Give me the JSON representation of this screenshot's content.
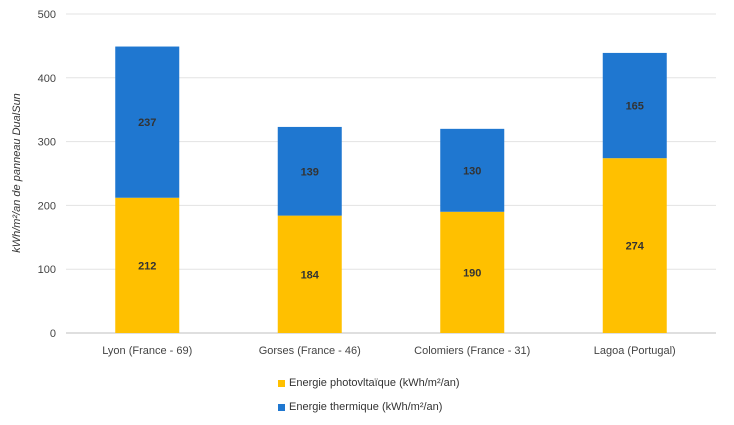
{
  "chart_data": {
    "type": "bar",
    "stacked": true,
    "ylabel": "kWh/m²/an de panneau DualSun",
    "ylim": [
      0,
      500
    ],
    "yticks": [
      0,
      100,
      200,
      300,
      400,
      500
    ],
    "grid": true,
    "legend_position": "bottom",
    "categories": [
      "Lyon (France - 69)",
      "Gorses (France - 46)",
      "Colomiers (France - 31)",
      "Lagoa (Portugal)"
    ],
    "series": [
      {
        "name": "Energie photovltaïque (kWh/m²/an)",
        "color": "#FFC000",
        "values": [
          212,
          184,
          190,
          274
        ]
      },
      {
        "name": "Energie thermique (kWh/m²/an)",
        "color": "#1F77D0",
        "values": [
          237,
          139,
          130,
          165
        ]
      }
    ]
  }
}
